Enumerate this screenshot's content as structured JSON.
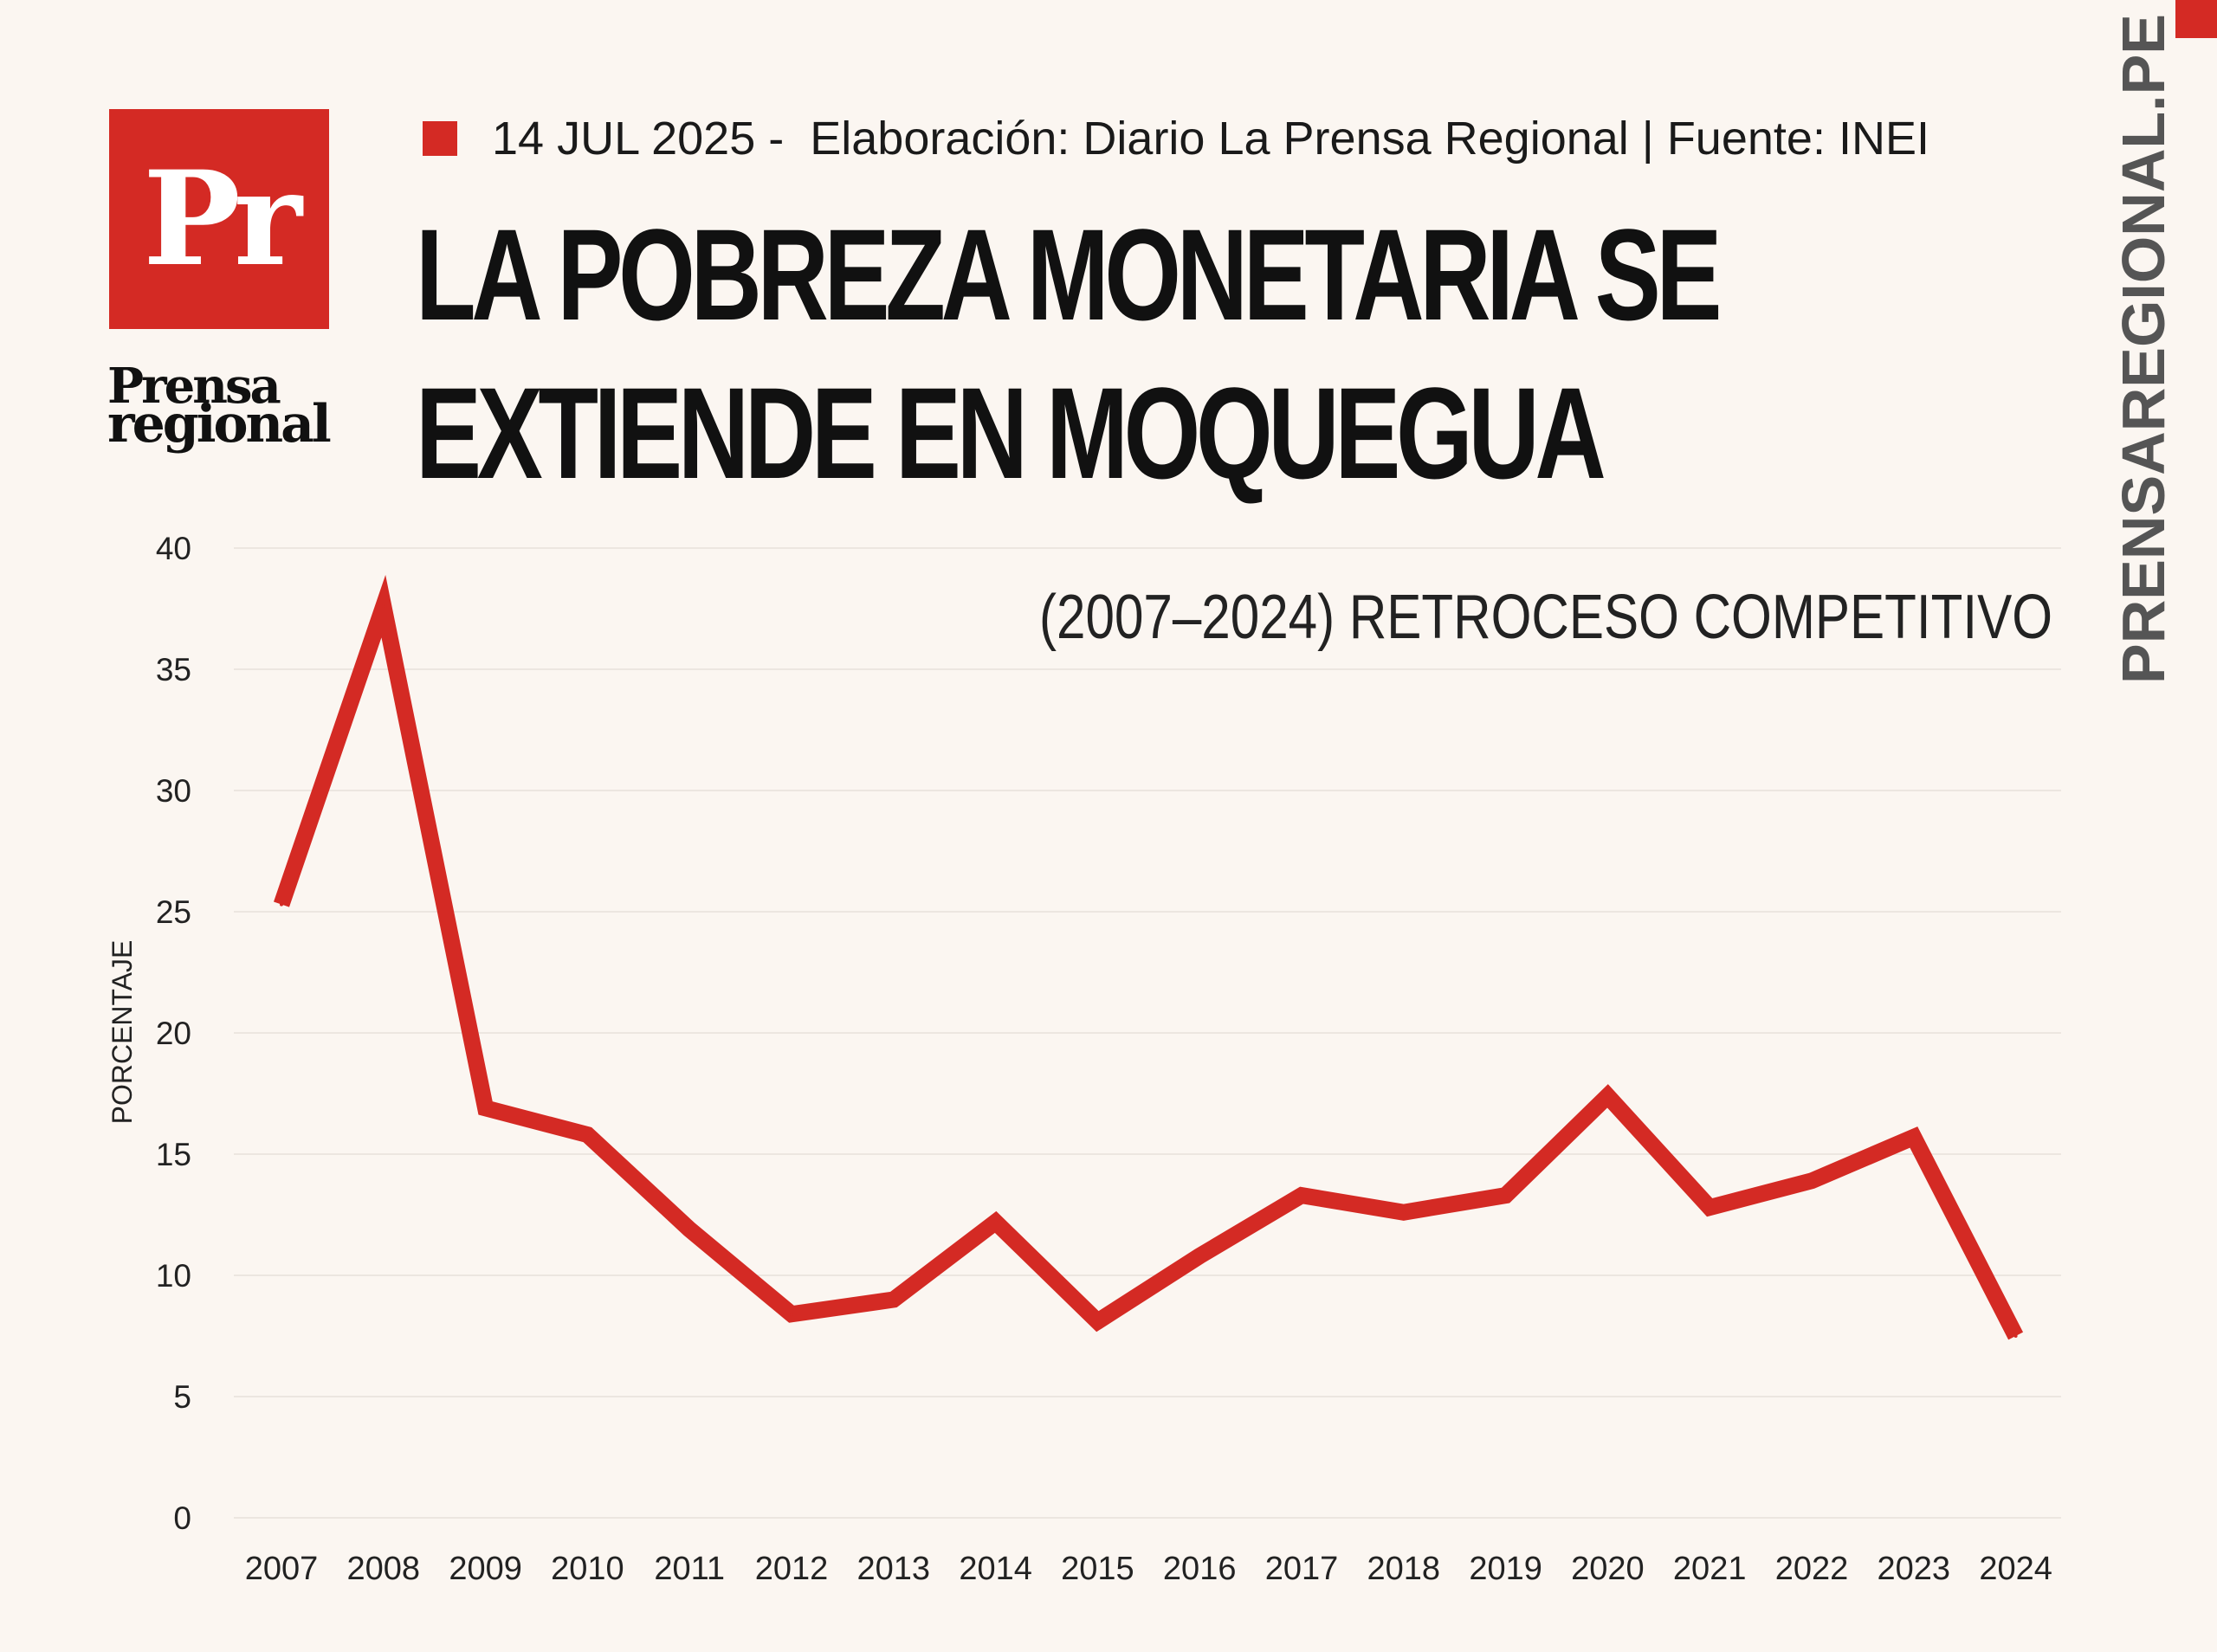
{
  "meta": {
    "date": "14 JUL 2025",
    "credit": "Elaboración: Diario La Prensa Regional | Fuente: INEI"
  },
  "headline": {
    "line1": "LA POBREZA MONETARIA SE",
    "line2": "EXTIENDE EN MOQUEGUA"
  },
  "logo": {
    "mark": "Pr",
    "word_top": "Prensa",
    "word_bottom": "regional"
  },
  "side_url": "PRENSAREGIONAL.PE",
  "colors": {
    "accent": "#d42a24",
    "background": "#fbf6f1",
    "text": "#111111",
    "grid": "#ece6e0"
  },
  "chart_data": {
    "type": "line",
    "subtitle": "(2007–2024) RETROCESO COMPETITIVO",
    "ylabel": "PORCENTAJE",
    "xlabel": "",
    "ylim": [
      0,
      40
    ],
    "yticks": [
      0,
      5,
      10,
      15,
      20,
      25,
      30,
      35,
      40
    ],
    "grid": true,
    "categories": [
      "2007",
      "2008",
      "2009",
      "2010",
      "2011",
      "2012",
      "2013",
      "2014",
      "2015",
      "2016",
      "2017",
      "2018",
      "2019",
      "2020",
      "2021",
      "2022",
      "2023",
      "2024"
    ],
    "series": [
      {
        "values": [
          25.3,
          37.6,
          16.9,
          15.8,
          11.9,
          8.4,
          9.0,
          12.2,
          8.1,
          10.8,
          13.3,
          12.6,
          13.3,
          17.4,
          12.8,
          13.9,
          15.7,
          7.5
        ]
      }
    ]
  }
}
